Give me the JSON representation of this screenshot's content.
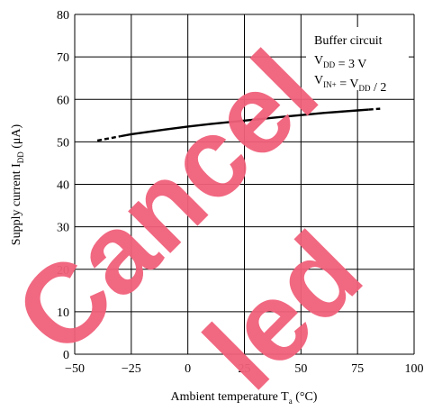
{
  "chart_data": {
    "type": "line",
    "ylabel": [
      "Supply current  I",
      "DD",
      " (μA)"
    ],
    "xlabel": [
      "Ambient temperature  T",
      "a",
      "  (°C)"
    ],
    "annotation": [
      [
        {
          "t": "Buffer circuit"
        }
      ],
      [
        {
          "t": "V"
        },
        {
          "sub": "DD"
        },
        {
          "t": " = 3 V"
        }
      ],
      [
        {
          "t": "V"
        },
        {
          "sub": "IN+"
        },
        {
          "t": " = V"
        },
        {
          "sub": "DD"
        },
        {
          "t": " / 2"
        }
      ]
    ],
    "watermark": [
      "Cancel",
      "led"
    ],
    "watermark_color": "#f0607a",
    "series": [
      {
        "x": [
          -40,
          -30
        ],
        "values": [
          50.3,
          51.3
        ],
        "color": "#000000",
        "dashed": true
      },
      {
        "x": [
          -30,
          -25,
          -10,
          0,
          10,
          25,
          40,
          50,
          60,
          75,
          80
        ],
        "values": [
          51.3,
          51.8,
          52.9,
          53.6,
          54.2,
          55.0,
          55.8,
          56.3,
          56.8,
          57.4,
          57.6
        ],
        "color": "#000000",
        "dashed": false
      },
      {
        "x": [
          80,
          85
        ],
        "values": [
          57.6,
          57.8
        ],
        "color": "#000000",
        "dashed": true
      }
    ],
    "xlim": [
      -50,
      100
    ],
    "xticks": [
      {
        "value": -50,
        "label": "−50"
      },
      {
        "value": -25,
        "label": "−25"
      },
      0,
      25,
      50,
      75,
      100
    ],
    "ylim": [
      0,
      80
    ],
    "yticks": [
      0,
      10,
      20,
      30,
      40,
      50,
      60,
      70,
      80
    ],
    "grid": true
  }
}
